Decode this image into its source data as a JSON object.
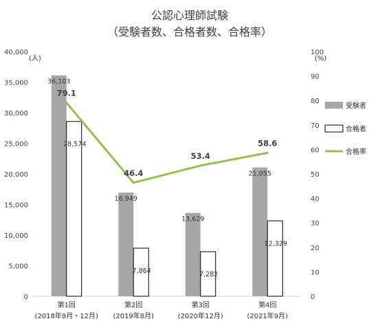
{
  "chart_data": {
    "type": "bar",
    "title": "公認心理師試験",
    "subtitle": "（受験者数、合格者数、合格率）",
    "categories": [
      "第1回",
      "第2回",
      "第3回",
      "第4回"
    ],
    "category_sublabels": [
      "(2018年9月・12月)",
      "(2019年8月)",
      "(2020年12月)",
      "(2021年9月)"
    ],
    "ylabel": "(人)",
    "y2label": "(%)",
    "ylim": [
      0,
      40000
    ],
    "y2lim": [
      0,
      100
    ],
    "yticks": [
      "0",
      "5,000",
      "10,000",
      "15,000",
      "20,000",
      "25,000",
      "30,000",
      "35,000",
      "40,000"
    ],
    "y2ticks": [
      "0",
      "10",
      "20",
      "30",
      "40",
      "50",
      "60",
      "70",
      "80",
      "90",
      "100"
    ],
    "grid": false,
    "legend_position": "right",
    "series": [
      {
        "name": "受験者",
        "kind": "bar",
        "axis": "left",
        "color": "#a6a6a6",
        "values": [
          36103,
          16949,
          13629,
          21055
        ],
        "labels": [
          "36,103",
          "16,949",
          "13,629",
          "21,055"
        ]
      },
      {
        "name": "合格者",
        "kind": "bar",
        "axis": "left",
        "color": "#ffffff",
        "values": [
          28574,
          7864,
          7282,
          12329
        ],
        "labels": [
          "28,574",
          "7,864",
          "7,282",
          "12,329"
        ]
      },
      {
        "name": "合格率",
        "kind": "line",
        "axis": "right",
        "color": "#92c050",
        "values": [
          79.1,
          46.4,
          53.4,
          58.6
        ],
        "labels": [
          "79.1",
          "46.4",
          "53.4",
          "58.6"
        ]
      }
    ]
  }
}
